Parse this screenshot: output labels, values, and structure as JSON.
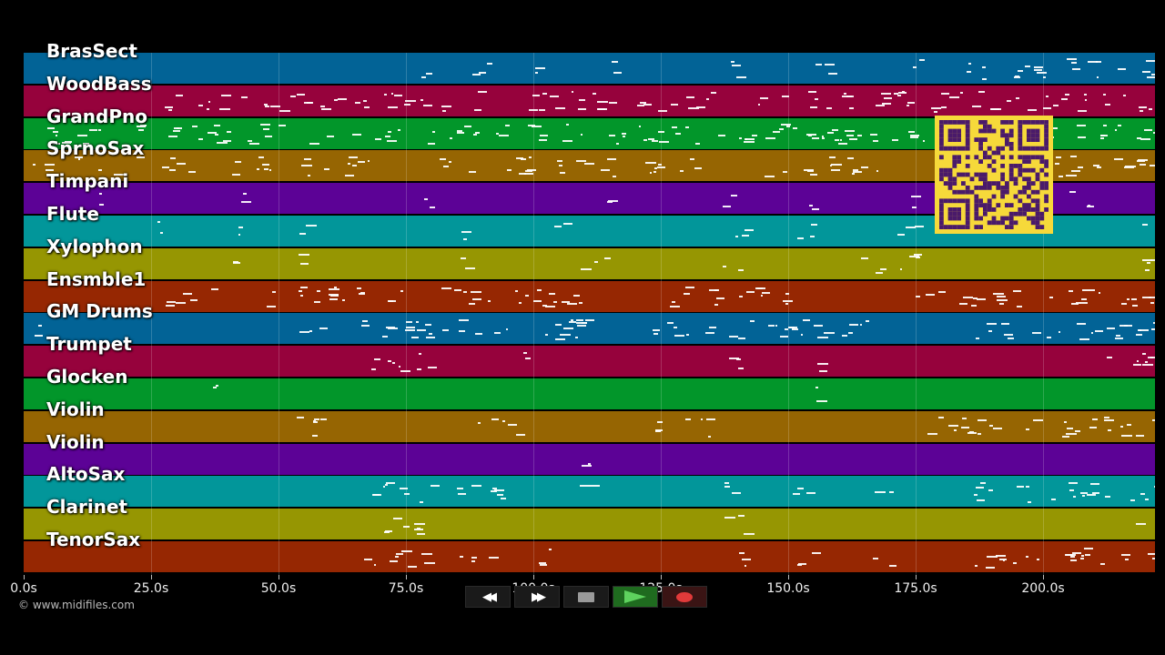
{
  "tracks": [
    {
      "name": "BrasSect",
      "color": "#026396"
    },
    {
      "name": "WoodBass",
      "color": "#96023c"
    },
    {
      "name": "GrandPno",
      "color": "#02962a"
    },
    {
      "name": "SprnoSax",
      "color": "#966502"
    },
    {
      "name": "Timpani",
      "color": "#5c0296"
    },
    {
      "name": "Flute",
      "color": "#02969a"
    },
    {
      "name": "Xylophon",
      "color": "#969602"
    },
    {
      "name": "Ensmble1",
      "color": "#962702"
    },
    {
      "name": "GM Drums",
      "color": "#026396"
    },
    {
      "name": "Trumpet",
      "color": "#96023c"
    },
    {
      "name": "Glocken",
      "color": "#02962a"
    },
    {
      "name": "Violin",
      "color": "#966502"
    },
    {
      "name": "Violin",
      "color": "#5c0296"
    },
    {
      "name": "AltoSax",
      "color": "#02969a"
    },
    {
      "name": "Clarinet",
      "color": "#969602"
    },
    {
      "name": "TenorSax",
      "color": "#962702"
    }
  ],
  "time_axis": {
    "ticks": [
      "0.0s",
      "25.0s",
      "50.0s",
      "75.0s",
      "100.0s",
      "125.0s",
      "150.0s",
      "175.0s",
      "200.0s"
    ]
  },
  "copyright": "© www.midifiles.com",
  "transport": [
    {
      "name": "rewind-button",
      "icon": "rewind-icon",
      "glyph": "◀◀"
    },
    {
      "name": "fast-forward-button",
      "icon": "fast-forward-icon",
      "glyph": "▶▶"
    },
    {
      "name": "stop-button",
      "icon": "stop-icon",
      "glyph": ""
    },
    {
      "name": "play-button",
      "icon": "play-icon",
      "glyph": ""
    },
    {
      "name": "record-button",
      "icon": "record-icon",
      "glyph": ""
    }
  ]
}
